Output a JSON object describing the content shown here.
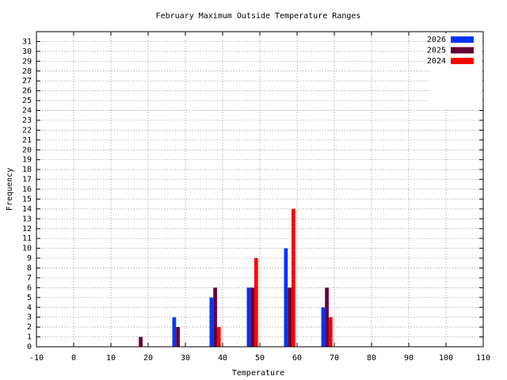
{
  "chart_data": {
    "type": "bar",
    "title": "February Maximum Outside Temperature Ranges",
    "x_label": "Temperature",
    "y_label": "Frequency",
    "x": [
      20,
      30,
      40,
      50,
      60,
      70
    ],
    "series": [
      {
        "name": "2026",
        "color": "#0033ff",
        "values": [
          0,
          3,
          5,
          6,
          10,
          4
        ]
      },
      {
        "name": "2025",
        "color": "#660033",
        "values": [
          1,
          2,
          6,
          6,
          6,
          6
        ]
      },
      {
        "name": "2024",
        "color": "#ff0000",
        "values": [
          0,
          0,
          2,
          9,
          14,
          3
        ]
      }
    ],
    "xlim": [
      -10,
      110
    ],
    "xticks": [
      -10,
      0,
      10,
      20,
      30,
      40,
      50,
      60,
      70,
      80,
      90,
      100,
      110
    ],
    "ylim": [
      0,
      32
    ],
    "yticks": [
      0,
      1,
      2,
      3,
      4,
      5,
      6,
      7,
      8,
      9,
      10,
      11,
      12,
      13,
      14,
      15,
      16,
      17,
      18,
      19,
      20,
      21,
      22,
      23,
      24,
      25,
      26,
      27,
      28,
      29,
      30,
      31
    ],
    "grid": true,
    "legend": "top-right"
  }
}
